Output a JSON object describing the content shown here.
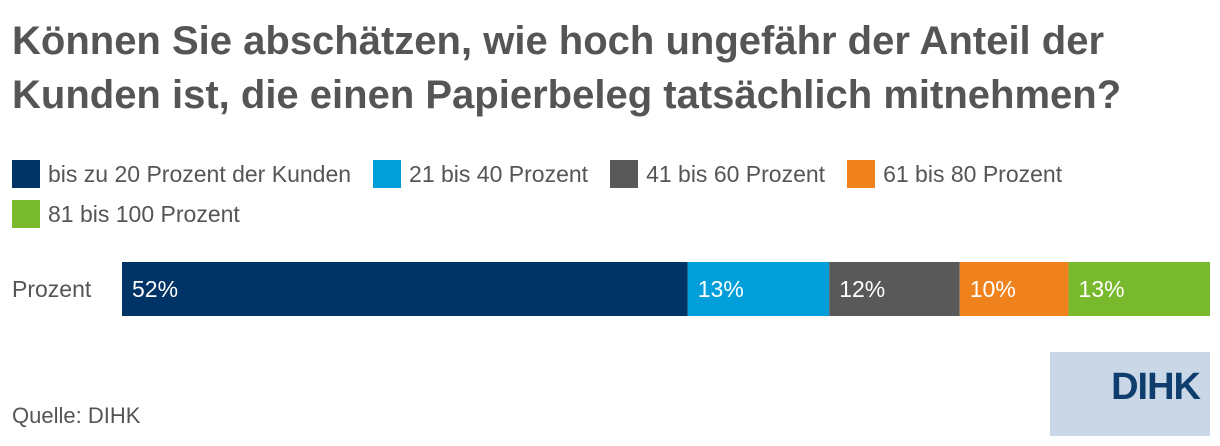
{
  "title": "Können Sie abschätzen, wie hoch ungefähr der Anteil der Kunden ist, die einen Papierbeleg tatsächlich mitnehmen?",
  "source": "Quelle: DIHK",
  "logo_text": "DIHK",
  "chart_data": {
    "type": "bar",
    "orientation": "horizontal",
    "stacked": true,
    "categories": [
      "Prozent"
    ],
    "title": "Können Sie abschätzen, wie hoch ungefähr der Anteil der Kunden ist, die einen Papierbeleg tatsächlich mitnehmen?",
    "xlim": [
      0,
      100
    ],
    "legend_position": "top",
    "series": [
      {
        "name": "bis zu 20 Prozent der Kunden",
        "values": [
          52
        ],
        "label": "52%",
        "color": "#003366"
      },
      {
        "name": "21 bis 40 Prozent",
        "values": [
          13
        ],
        "label": "13%",
        "color": "#009fd9"
      },
      {
        "name": "41 bis 60 Prozent",
        "values": [
          12
        ],
        "label": "12%",
        "color": "#595959"
      },
      {
        "name": "61 bis 80 Prozent",
        "values": [
          10
        ],
        "label": "10%",
        "color": "#f0821e"
      },
      {
        "name": "81 bis 100 Prozent",
        "values": [
          13
        ],
        "label": "13%",
        "color": "#79b92d"
      }
    ]
  }
}
